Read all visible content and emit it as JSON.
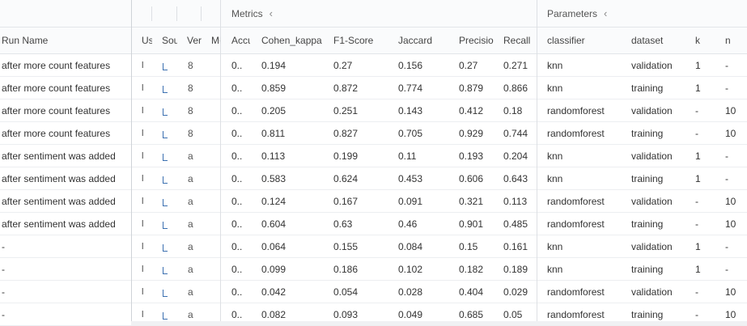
{
  "groups": {
    "metrics": "Metrics",
    "parameters": "Parameters",
    "collapse_icon": "chevron-left-icon"
  },
  "columns": {
    "run_name": "Run Name",
    "user": "Us",
    "source": "Sou",
    "version": "Ver",
    "models": "M‹",
    "accuracy": "Accu",
    "cohen_kappa": "Cohen_kappa",
    "f1_score": "F1-Score",
    "jaccard": "Jaccard",
    "precision": "Precisio",
    "recall": "Recall",
    "classifier": "classifier",
    "dataset": "dataset",
    "k": "k",
    "n": "n"
  },
  "rows": [
    {
      "run_name": "after more count features",
      "user": "l",
      "version": "8",
      "accuracy": "0..",
      "cohen_kappa": "0.194",
      "f1_score": "0.27",
      "jaccard": "0.156",
      "precision": "0.27",
      "recall": "0.271",
      "classifier": "knn",
      "dataset": "validation",
      "k": "1",
      "n": "-"
    },
    {
      "run_name": "after more count features",
      "user": "l",
      "version": "8",
      "accuracy": "0..",
      "cohen_kappa": "0.859",
      "f1_score": "0.872",
      "jaccard": "0.774",
      "precision": "0.879",
      "recall": "0.866",
      "classifier": "knn",
      "dataset": "training",
      "k": "1",
      "n": "-"
    },
    {
      "run_name": "after more count features",
      "user": "l",
      "version": "8",
      "accuracy": "0..",
      "cohen_kappa": "0.205",
      "f1_score": "0.251",
      "jaccard": "0.143",
      "precision": "0.412",
      "recall": "0.18",
      "classifier": "randomforest",
      "dataset": "validation",
      "k": "-",
      "n": "10"
    },
    {
      "run_name": "after more count features",
      "user": "l",
      "version": "8",
      "accuracy": "0..",
      "cohen_kappa": "0.811",
      "f1_score": "0.827",
      "jaccard": "0.705",
      "precision": "0.929",
      "recall": "0.744",
      "classifier": "randomforest",
      "dataset": "training",
      "k": "-",
      "n": "10"
    },
    {
      "run_name": "after sentiment was added",
      "user": "l",
      "version": "a",
      "accuracy": "0..",
      "cohen_kappa": "0.113",
      "f1_score": "0.199",
      "jaccard": "0.11",
      "precision": "0.193",
      "recall": "0.204",
      "classifier": "knn",
      "dataset": "validation",
      "k": "1",
      "n": "-"
    },
    {
      "run_name": "after sentiment was added",
      "user": "l",
      "version": "a",
      "accuracy": "0..",
      "cohen_kappa": "0.583",
      "f1_score": "0.624",
      "jaccard": "0.453",
      "precision": "0.606",
      "recall": "0.643",
      "classifier": "knn",
      "dataset": "training",
      "k": "1",
      "n": "-"
    },
    {
      "run_name": "after sentiment was added",
      "user": "l",
      "version": "a",
      "accuracy": "0..",
      "cohen_kappa": "0.124",
      "f1_score": "0.167",
      "jaccard": "0.091",
      "precision": "0.321",
      "recall": "0.113",
      "classifier": "randomforest",
      "dataset": "validation",
      "k": "-",
      "n": "10"
    },
    {
      "run_name": "after sentiment was added",
      "user": "l",
      "version": "a",
      "accuracy": "0..",
      "cohen_kappa": "0.604",
      "f1_score": "0.63",
      "jaccard": "0.46",
      "precision": "0.901",
      "recall": "0.485",
      "classifier": "randomforest",
      "dataset": "training",
      "k": "-",
      "n": "10"
    },
    {
      "run_name": "-",
      "user": "l",
      "version": "a",
      "accuracy": "0..",
      "cohen_kappa": "0.064",
      "f1_score": "0.155",
      "jaccard": "0.084",
      "precision": "0.15",
      "recall": "0.161",
      "classifier": "knn",
      "dataset": "validation",
      "k": "1",
      "n": "-"
    },
    {
      "run_name": "-",
      "user": "l",
      "version": "a",
      "accuracy": "0..",
      "cohen_kappa": "0.099",
      "f1_score": "0.186",
      "jaccard": "0.102",
      "precision": "0.182",
      "recall": "0.189",
      "classifier": "knn",
      "dataset": "training",
      "k": "1",
      "n": "-"
    },
    {
      "run_name": "-",
      "user": "l",
      "version": "a",
      "accuracy": "0..",
      "cohen_kappa": "0.042",
      "f1_score": "0.054",
      "jaccard": "0.028",
      "precision": "0.404",
      "recall": "0.029",
      "classifier": "randomforest",
      "dataset": "validation",
      "k": "-",
      "n": "10"
    },
    {
      "run_name": "-",
      "user": "l",
      "version": "a",
      "accuracy": "0..",
      "cohen_kappa": "0.082",
      "f1_score": "0.093",
      "jaccard": "0.049",
      "precision": "0.685",
      "recall": "0.05",
      "classifier": "randomforest",
      "dataset": "training",
      "k": "-",
      "n": "10"
    }
  ],
  "colors": {
    "link": "#3a6fb0",
    "border": "#dde0e4",
    "header_bg": "#fafbfc"
  }
}
